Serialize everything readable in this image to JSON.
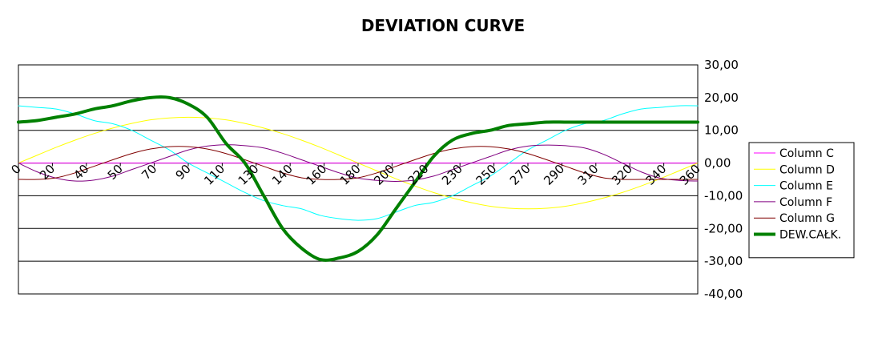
{
  "chart_data": {
    "type": "line",
    "title": "DEVIATION CURVE",
    "xlabel": "",
    "ylabel": "",
    "x_tick_labels": [
      "0",
      "20",
      "40",
      "50",
      "70",
      "90",
      "110",
      "130",
      "140",
      "160",
      "180",
      "200",
      "220",
      "230",
      "250",
      "270",
      "290",
      "310",
      "320",
      "340",
      "360"
    ],
    "y_tick_labels": [
      "30,00",
      "20,00",
      "10,00",
      "0,00",
      "-10,00",
      "-20,00",
      "-30,00",
      "-40,00"
    ],
    "xlim": [
      0,
      360
    ],
    "ylim": [
      -40,
      30
    ],
    "grid": "horizontal",
    "y_axis_side": "right",
    "legend_position": "right",
    "x": [
      0,
      10,
      20,
      30,
      40,
      50,
      60,
      70,
      80,
      90,
      100,
      110,
      120,
      130,
      140,
      150,
      160,
      170,
      180,
      190,
      200,
      210,
      220,
      230,
      240,
      250,
      260,
      270,
      280,
      290,
      300,
      310,
      320,
      330,
      340,
      350,
      360
    ],
    "series": [
      {
        "name": "Column C",
        "color": "#ff00ff",
        "width": 1,
        "values": [
          0,
          0,
          0,
          0,
          0,
          0,
          0,
          0,
          0,
          0,
          0,
          0,
          0,
          0,
          0,
          0,
          0,
          0,
          0,
          0,
          0,
          0,
          0,
          0,
          0,
          0,
          0,
          0,
          0,
          0,
          0,
          0,
          0,
          0,
          0,
          0,
          0
        ]
      },
      {
        "name": "Column D",
        "color": "#ffff00",
        "width": 1,
        "values": [
          0,
          2.4,
          4.8,
          7,
          9,
          10.7,
          12.1,
          13.2,
          13.8,
          14,
          13.8,
          13.2,
          12.1,
          10.7,
          9,
          7,
          4.8,
          2.4,
          0,
          -2.4,
          -4.8,
          -7,
          -9,
          -10.7,
          -12.1,
          -13.2,
          -13.8,
          -14,
          -13.8,
          -13.2,
          -12.1,
          -10.7,
          -9,
          -7,
          -4.8,
          -2.4,
          0
        ]
      },
      {
        "name": "Column E",
        "color": "#00ffff",
        "width": 1,
        "values": [
          17.5,
          17,
          16.5,
          15,
          13,
          12,
          10,
          7,
          4,
          0,
          -3,
          -6,
          -9,
          -11.5,
          -13,
          -14,
          -16,
          -17,
          -17.5,
          -17,
          -15,
          -13,
          -12,
          -10,
          -7,
          -4,
          0,
          4,
          7,
          10,
          12,
          13,
          15,
          16.5,
          17,
          17.5,
          17.5
        ]
      },
      {
        "name": "Column F",
        "color": "#800080",
        "width": 1,
        "values": [
          0,
          -2.7,
          -4.6,
          -5.5,
          -5.2,
          -4,
          -2,
          0,
          2,
          4,
          5.2,
          5.6,
          5.3,
          4.6,
          3,
          1,
          -1,
          -3,
          -4.6,
          -5.3,
          -5.6,
          -5.2,
          -4,
          -2,
          0,
          2,
          4,
          5.2,
          5.5,
          5.3,
          4.6,
          2.7,
          0,
          -2.7,
          -4.6,
          -5.3,
          -5.5
        ]
      },
      {
        "name": "Column G",
        "color": "#800000",
        "width": 1,
        "values": [
          -5,
          -5,
          -4.5,
          -3,
          -1,
          1,
          2.9,
          4.3,
          5,
          5,
          4.3,
          2.9,
          1,
          -1,
          -3,
          -4.5,
          -5,
          -5,
          -4.5,
          -3,
          -1,
          1,
          2.9,
          4.3,
          5,
          5,
          4.3,
          2.9,
          1,
          -1,
          -3,
          -4.5,
          -5,
          -5,
          -5,
          -5,
          -5
        ]
      },
      {
        "name": "DEW.CAŁK.",
        "color": "#008000",
        "width": 4,
        "values": [
          12.5,
          13,
          14,
          15,
          16.5,
          17.5,
          19,
          20,
          20,
          18,
          14,
          6,
          0,
          -10,
          -20,
          -26,
          -29.5,
          -29,
          -27,
          -22,
          -14,
          -6,
          2,
          7,
          9,
          10,
          11.5,
          12,
          12.5,
          12.5,
          12.5,
          12.5,
          12.5,
          12.5,
          12.5,
          12.5,
          12.5
        ]
      }
    ]
  }
}
